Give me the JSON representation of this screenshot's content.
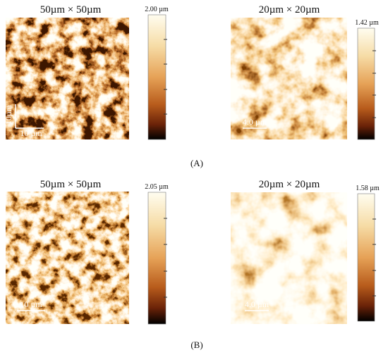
{
  "panels": [
    {
      "label": "(A)",
      "images": [
        {
          "title": "50µm × 50µm",
          "scale_max": "2.00 µm",
          "scale_bars": [
            "10µm",
            "10 µm"
          ]
        },
        {
          "title": "20µm × 20µm",
          "scale_max": "1.42 µm",
          "scale_bars": [
            "4.0 µm"
          ]
        }
      ]
    },
    {
      "label": "(B)",
      "images": [
        {
          "title": "50µm × 50µm",
          "scale_max": "2.05 µm",
          "scale_bars": [
            "10 µm"
          ]
        },
        {
          "title": "20µm × 20µm",
          "scale_max": "1.58 µm",
          "scale_bars": [
            "4.0 µm"
          ]
        }
      ]
    }
  ]
}
